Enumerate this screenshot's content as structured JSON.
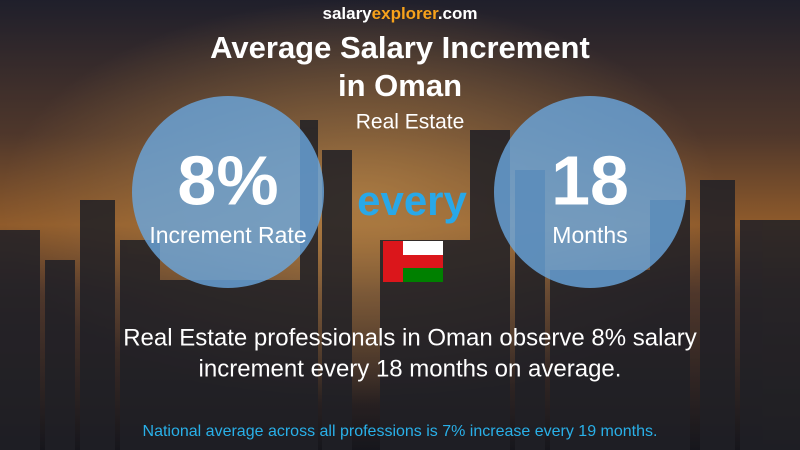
{
  "brand": {
    "parts": [
      "salary",
      "explorer",
      ".com"
    ]
  },
  "header": {
    "title_lines": [
      "Average Salary Increment",
      "in Oman"
    ],
    "subtitle": "Real Estate"
  },
  "left_circle": {
    "value": "8%",
    "label": "Increment Rate"
  },
  "middle": {
    "text": "every"
  },
  "right_circle": {
    "value": "18",
    "label": "Months"
  },
  "body": {
    "lines": [
      "Real Estate professionals in Oman observe 8% salary",
      "increment every 18 months on average."
    ]
  },
  "footer": {
    "text": "National average across all professions is 7% increase every 19 months."
  }
}
